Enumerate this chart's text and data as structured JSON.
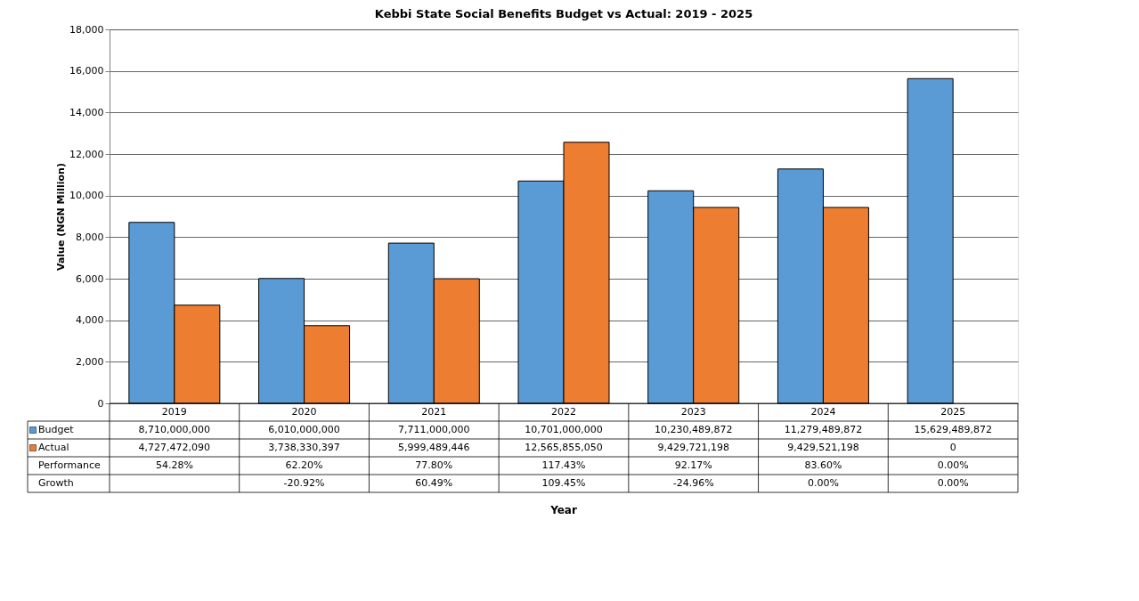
{
  "chart_data": {
    "type": "bar",
    "title": "Kebbi State Social Benefits Budget vs Actual: 2019 - 2025",
    "ylabel": "Value (NGN Million)",
    "categories": [
      "2019",
      "2020",
      "2021",
      "2022",
      "2023",
      "2024",
      "2025"
    ],
    "series": [
      {
        "name": "Budget",
        "color": "#5b9bd5",
        "values": [
          8710,
          6010,
          7711,
          10701,
          10230.489872,
          11279.489872,
          15629.489872
        ]
      },
      {
        "name": "Actual",
        "color": "#ed7d31",
        "values": [
          4727.47209,
          3738.330397,
          5999.489446,
          12565.85505,
          9429.721198,
          9429.521198,
          0
        ]
      }
    ],
    "ylim": [
      0,
      18000
    ],
    "yticks": [
      {
        "value": 0,
        "label": "0"
      },
      {
        "value": 2000,
        "label": "2,000"
      },
      {
        "value": 4000,
        "label": "4,000"
      },
      {
        "value": 6000,
        "label": "6,000"
      },
      {
        "value": 8000,
        "label": "8,000"
      },
      {
        "value": 10000,
        "label": "10,000"
      },
      {
        "value": 12000,
        "label": "12,000"
      },
      {
        "value": 14000,
        "label": "14,000"
      },
      {
        "value": 16000,
        "label": "16,000"
      },
      {
        "value": 18000,
        "label": "18,000"
      }
    ],
    "grid": "y",
    "legend": "bottom",
    "annotations": [
      "8,710,000,000",
      "6,010,000,000",
      "7,711,000,000",
      "10,701,000,000",
      "10,230,489,872",
      "11,279,489,872",
      "15,629,489,872",
      "4,727,472,090",
      "3,738,330,397",
      "5,999,489,446",
      "12,565,855,050",
      "9,429,721,198",
      "9,429,521,198",
      "0",
      "Performance",
      "54.28%",
      "62.20%",
      "77.80%",
      "117.43%",
      "92.17%",
      "83.60%",
      "0.00%",
      "Growth",
      "-20.92%",
      "60.49%",
      "109.45%",
      "-24.96%",
      "0.00%",
      "0.00%",
      "Year"
    ]
  }
}
